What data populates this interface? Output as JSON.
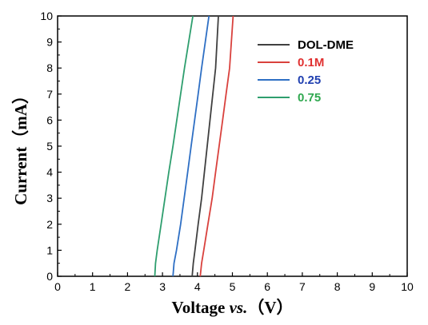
{
  "chart_data": {
    "type": "line",
    "title": "",
    "xlabel_main": "Voltage ",
    "xlabel_italic": "vs.",
    "xlabel_unit": "（V）",
    "ylabel": "Current（mA）",
    "xlim": [
      0,
      10
    ],
    "ylim": [
      0,
      10
    ],
    "xticks": [
      "0",
      "1",
      "2",
      "3",
      "4",
      "5",
      "6",
      "7",
      "8",
      "9",
      "10"
    ],
    "yticks": [
      "0",
      "1",
      "2",
      "3",
      "4",
      "5",
      "6",
      "7",
      "8",
      "9",
      "10"
    ],
    "grid": false,
    "legend_position": "top-right",
    "series": [
      {
        "name": "DOL-DME",
        "color": "#404040",
        "x": [
          3.85,
          3.88,
          3.93,
          4.02,
          4.12,
          4.2,
          4.28,
          4.36,
          4.44,
          4.52,
          4.6
        ],
        "y": [
          0,
          0.5,
          1,
          2,
          3,
          4,
          5,
          6,
          7,
          8,
          10
        ]
      },
      {
        "name": "0.1M",
        "color": "#d9413d",
        "x": [
          4.08,
          4.12,
          4.18,
          4.3,
          4.42,
          4.52,
          4.62,
          4.72,
          4.82,
          4.92,
          5.02
        ],
        "y": [
          0,
          0.5,
          1,
          2,
          3,
          4,
          5,
          6,
          7,
          8,
          10
        ]
      },
      {
        "name": "0.25",
        "color": "#2e6fc4",
        "x": [
          3.3,
          3.33,
          3.4,
          3.52,
          3.62,
          3.72,
          3.82,
          3.92,
          4.02,
          4.12,
          4.33
        ],
        "y": [
          0,
          0.5,
          1,
          2,
          3,
          4,
          5,
          6,
          7,
          8,
          10
        ]
      },
      {
        "name": "0.75",
        "color": "#2e9e6e",
        "x": [
          2.78,
          2.8,
          2.85,
          2.96,
          3.07,
          3.18,
          3.3,
          3.41,
          3.52,
          3.63,
          3.87
        ],
        "y": [
          0,
          0.5,
          1,
          2,
          3,
          4,
          5,
          6,
          7,
          8,
          10
        ]
      }
    ],
    "legend_text_colors": [
      "#000000",
      "#e03030",
      "#1f3fb0",
      "#2fa84f"
    ]
  }
}
